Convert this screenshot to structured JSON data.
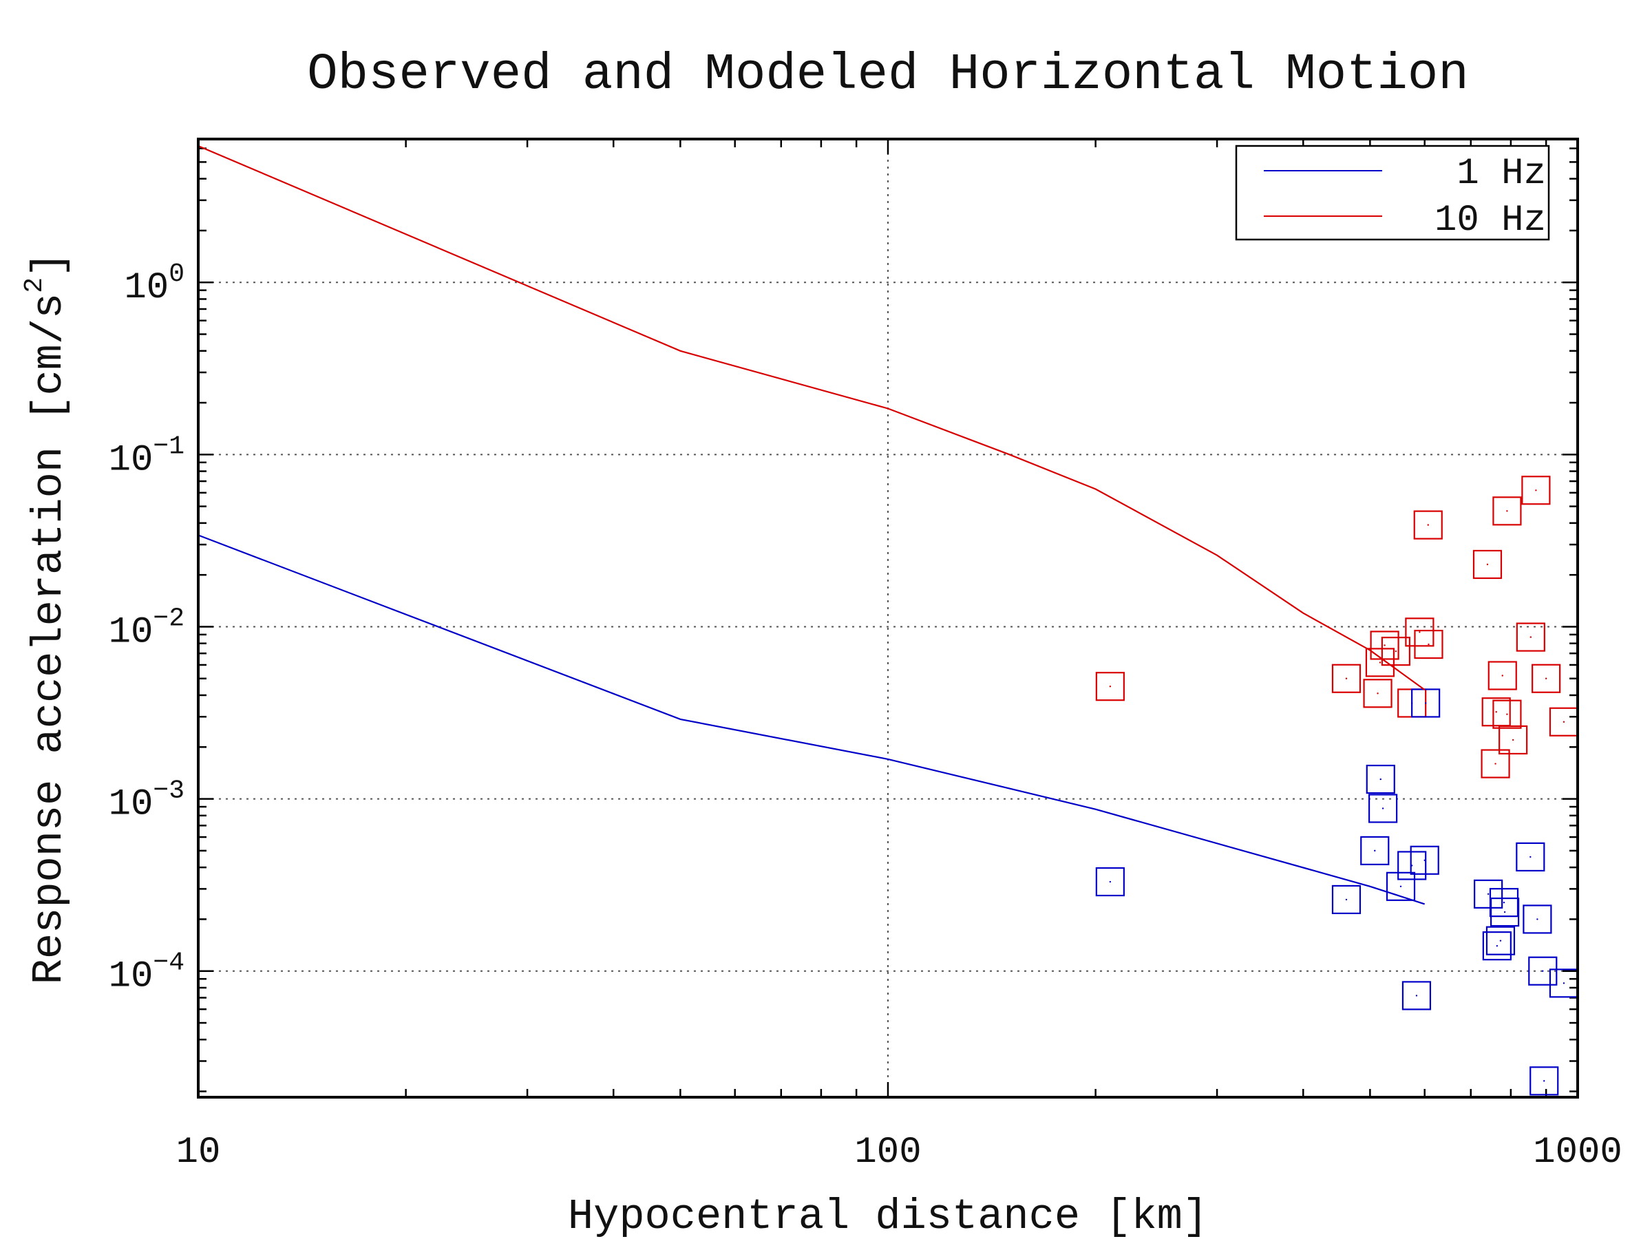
{
  "chart_data": {
    "type": "line",
    "title": "Observed and Modeled Horizontal Motion",
    "xlabel": "Hypocentral distance [km]",
    "ylabel": "Response acceleration [cm/s",
    "ylabel_superscript": "2",
    "ylabel_suffix": "]",
    "x_scale": "log",
    "y_scale": "log",
    "xlim": [
      10,
      1000
    ],
    "ylim": [
      1.85e-05,
      6.8
    ],
    "x_ticks": [
      {
        "value": 10,
        "label": "10"
      },
      {
        "value": 100,
        "label": "100"
      },
      {
        "value": 1000,
        "label": "1000"
      }
    ],
    "y_ticks": [
      {
        "value": 1,
        "base": "10",
        "exp": "0"
      },
      {
        "value": 0.1,
        "base": "10",
        "exp": "−1"
      },
      {
        "value": 0.01,
        "base": "10",
        "exp": "−2"
      },
      {
        "value": 0.001,
        "base": "10",
        "exp": "−3"
      },
      {
        "value": 0.0001,
        "base": "10",
        "exp": "−4"
      }
    ],
    "grid": true,
    "legend_position": "top-right",
    "series": [
      {
        "name": "1 Hz",
        "color": "#0000c8",
        "x": [
          10,
          50,
          100,
          200,
          500,
          600
        ],
        "y": [
          0.034,
          0.0029,
          0.0017,
          0.00087,
          0.00031,
          0.000245
        ]
      },
      {
        "name": "10 Hz",
        "color": "#d80000",
        "x": [
          10,
          50,
          100,
          150,
          200,
          300,
          400,
          500,
          600
        ],
        "y": [
          6.2,
          0.4,
          0.185,
          0.1,
          0.063,
          0.026,
          0.012,
          0.0073,
          0.0043
        ]
      }
    ],
    "observations": [
      {
        "name": "10 Hz",
        "color": "#d80000",
        "x": [
          210,
          462,
          517,
          525,
          513,
          545,
          575,
          590,
          608,
          607,
          740,
          790,
          778,
          790,
          806,
          760,
          762,
          855,
          870,
          900,
          955
        ],
        "y": [
          0.0045,
          0.005,
          0.0062,
          0.0078,
          0.0041,
          0.0072,
          0.0036,
          0.0093,
          0.0079,
          0.039,
          0.023,
          0.047,
          0.0052,
          0.0031,
          0.0022,
          0.0016,
          0.0032,
          0.0087,
          0.062,
          0.005,
          0.0028
        ]
      },
      {
        "name": "1 Hz",
        "color": "#0000c8",
        "x": [
          210,
          462,
          508,
          518,
          522,
          554,
          575,
          600,
          602,
          584,
          742,
          782,
          773,
          764,
          784,
          854,
          874,
          890,
          894,
          955
        ],
        "y": [
          0.00033,
          0.00026,
          0.0005,
          0.0013,
          0.00088,
          0.00031,
          0.00041,
          0.00044,
          0.0036,
          7.2e-05,
          0.00028,
          0.00025,
          0.00015,
          0.00014,
          0.00022,
          0.00046,
          0.0002,
          0.0001,
          2.3e-05,
          8.5e-05
        ]
      }
    ]
  }
}
